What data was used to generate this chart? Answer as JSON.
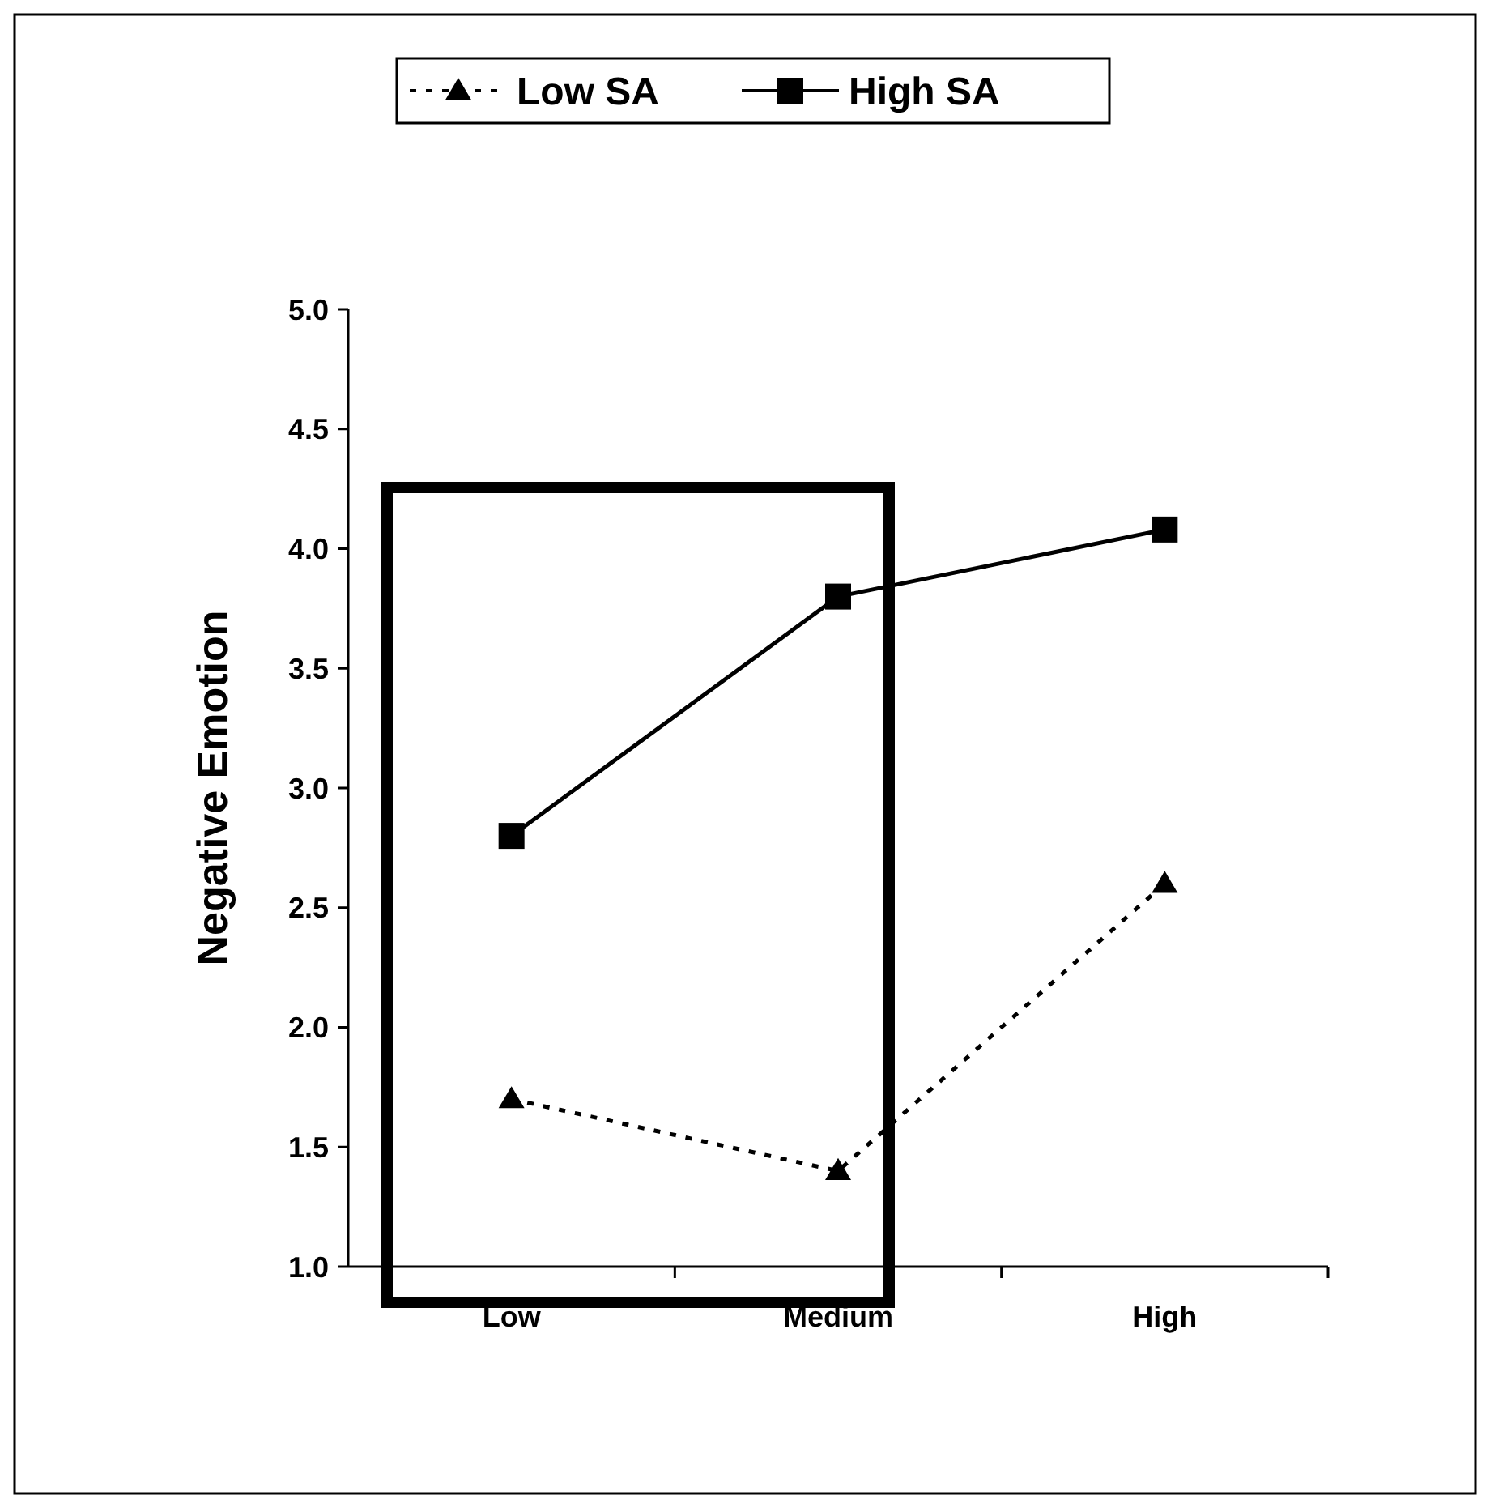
{
  "chart_data": {
    "type": "line",
    "ylabel": "Negative Emotion",
    "categories": [
      "Low",
      "Medium",
      "High"
    ],
    "series": [
      {
        "name": "Low SA",
        "color": "#000000",
        "values": [
          1.7,
          1.4,
          2.6
        ],
        "marker": "triangle",
        "line_style": "dotted"
      },
      {
        "name": "High SA",
        "color": "#000000",
        "values": [
          2.8,
          3.8,
          4.08
        ],
        "marker": "square",
        "line_style": "solid"
      }
    ],
    "ylim": [
      1,
      5
    ],
    "yticks": [
      {
        "value": 1,
        "label": "1.0"
      },
      {
        "value": 1.5,
        "label": "1.5"
      },
      {
        "value": 2,
        "label": "2.0"
      },
      {
        "value": 2.5,
        "label": "2.5"
      },
      {
        "value": 3,
        "label": "3.0"
      },
      {
        "value": 3.5,
        "label": "3.5"
      },
      {
        "value": 4,
        "label": "4.0"
      },
      {
        "value": 4.5,
        "label": "4.5"
      },
      {
        "value": 5,
        "label": "5.0"
      }
    ],
    "grid": false,
    "legend": "top"
  }
}
